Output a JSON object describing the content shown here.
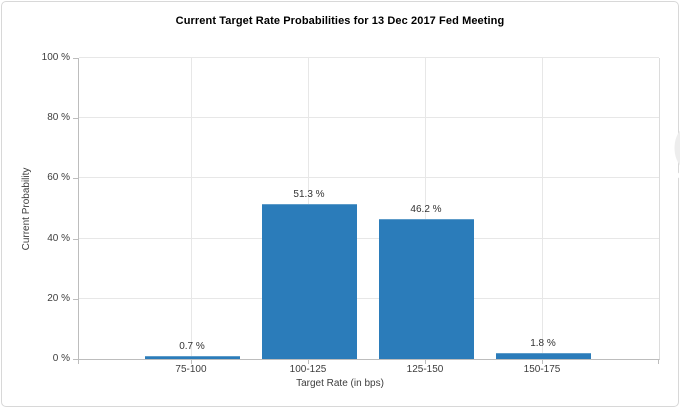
{
  "window": {
    "background": "#ffffff",
    "border_color": "#d8d8d8"
  },
  "watermark": {
    "icon": "quikstrike-lightning-q-logo"
  },
  "colors": {
    "bar": "#2b7cba",
    "bar_edge": "#5e9cc9",
    "gridline": "#e7e7e7",
    "axis_line": "#bdbdbd",
    "plot_right_border": "#dcdcdc",
    "tick_text": "#3d3d3d",
    "value_label_text": "#333333",
    "title_text": "#000000",
    "watermark_gray": "#ededed"
  },
  "chart_data": {
    "type": "bar",
    "title": "Current Target Rate Probabilities for 13 Dec 2017 Fed Meeting",
    "categories": [
      "75-100",
      "100-125",
      "125-150",
      "150-175"
    ],
    "values": [
      0.7,
      51.3,
      46.2,
      1.8
    ],
    "value_labels": [
      "0.7 %",
      "51.3 %",
      "46.2 %",
      "1.8 %"
    ],
    "xlabel": "Target Rate (in bps)",
    "ylabel": "Current Probability",
    "ylim": [
      0,
      100
    ],
    "ytick_step": 20,
    "ytick_labels": [
      "0 %",
      "20 %",
      "40 %",
      "60 %",
      "80 %",
      "100 %"
    ],
    "grid": true,
    "legend": "none",
    "bar_color": "#2b7cba"
  }
}
